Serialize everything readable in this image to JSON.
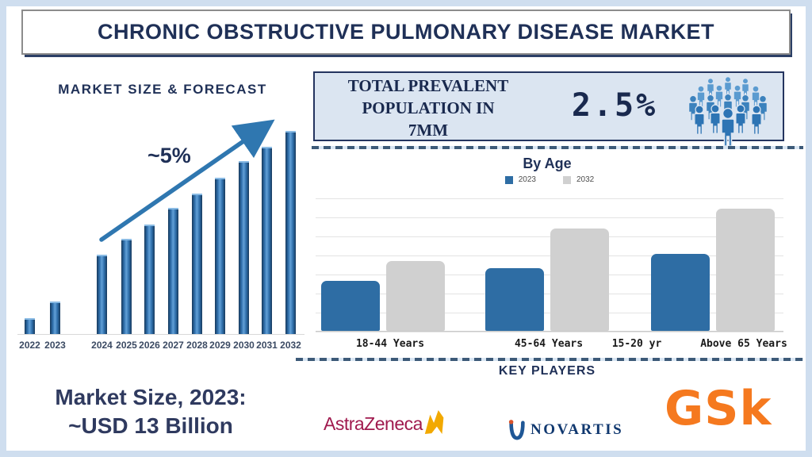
{
  "page": {
    "title": "CHRONIC OBSTRUCTIVE PULMONARY DISEASE MARKET"
  },
  "prevalence_box": {
    "line1": "TOTAL PREVALENT",
    "line2": "POPULATION IN",
    "line3": "7MM",
    "value": "2.5%",
    "icon": "crowd-icon"
  },
  "market_note": {
    "line1": "Market Size, 2023:",
    "line2": "~USD 13 Billion"
  },
  "key_players": {
    "title": "KEY PLAYERS",
    "companies": [
      {
        "name": "AstraZeneca",
        "text_color": "#a01a4e",
        "icon": "astrazeneca-swoosh-icon",
        "icon_color": "#F2A900"
      },
      {
        "name": "NOVARTIS",
        "text_color": "#10386f",
        "icon": "novartis-flame-icon",
        "icon_color": "#1f5796"
      },
      {
        "name": "GSk",
        "text_color": "#f5791f",
        "icon": "gsk-wordmark"
      }
    ]
  },
  "colors": {
    "frame": "#cfdeef",
    "navy_text": "#1f3057",
    "market_bar": "#2e75b6",
    "box_fill": "#dbe5f1",
    "box_border": "#24345f",
    "dashed_line": "#3d5a78",
    "gridline": "#e3e3e3"
  },
  "chart_data": [
    {
      "id": "market_size_forecast",
      "type": "bar",
      "title": "MARKET SIZE & FORECAST",
      "annotation": "~5%",
      "categories": [
        "2022",
        "2023",
        "2024",
        "2025",
        "2026",
        "2027",
        "2028",
        "2029",
        "2030",
        "2031",
        "2032"
      ],
      "values": [
        8,
        16,
        39,
        47,
        54,
        62,
        69,
        77,
        85,
        92,
        100
      ],
      "ylabel": "",
      "xlabel": "",
      "grid": false,
      "bar_color": "#2e75b6",
      "notes": "values are relative bar heights (max = 100); upward trend arrow annotated ~5%"
    },
    {
      "id": "by_age",
      "type": "bar",
      "title": "By Age",
      "categories": [
        "18-44 Years",
        "45-64 Years",
        "Above 65 Years"
      ],
      "x_axis_labels_shown": [
        "18-44 Years",
        "45-64 Years",
        "15-20 yr",
        "Above 65 Years"
      ],
      "series": [
        {
          "name": "2023",
          "color": "#2e6da4",
          "values": [
            41,
            51,
            63
          ]
        },
        {
          "name": "2032",
          "color": "#d0d0d0",
          "values": [
            57,
            84,
            100
          ]
        }
      ],
      "grid": true,
      "legend_position": "top",
      "notes": "values are relative bar heights (max = 100)"
    }
  ]
}
